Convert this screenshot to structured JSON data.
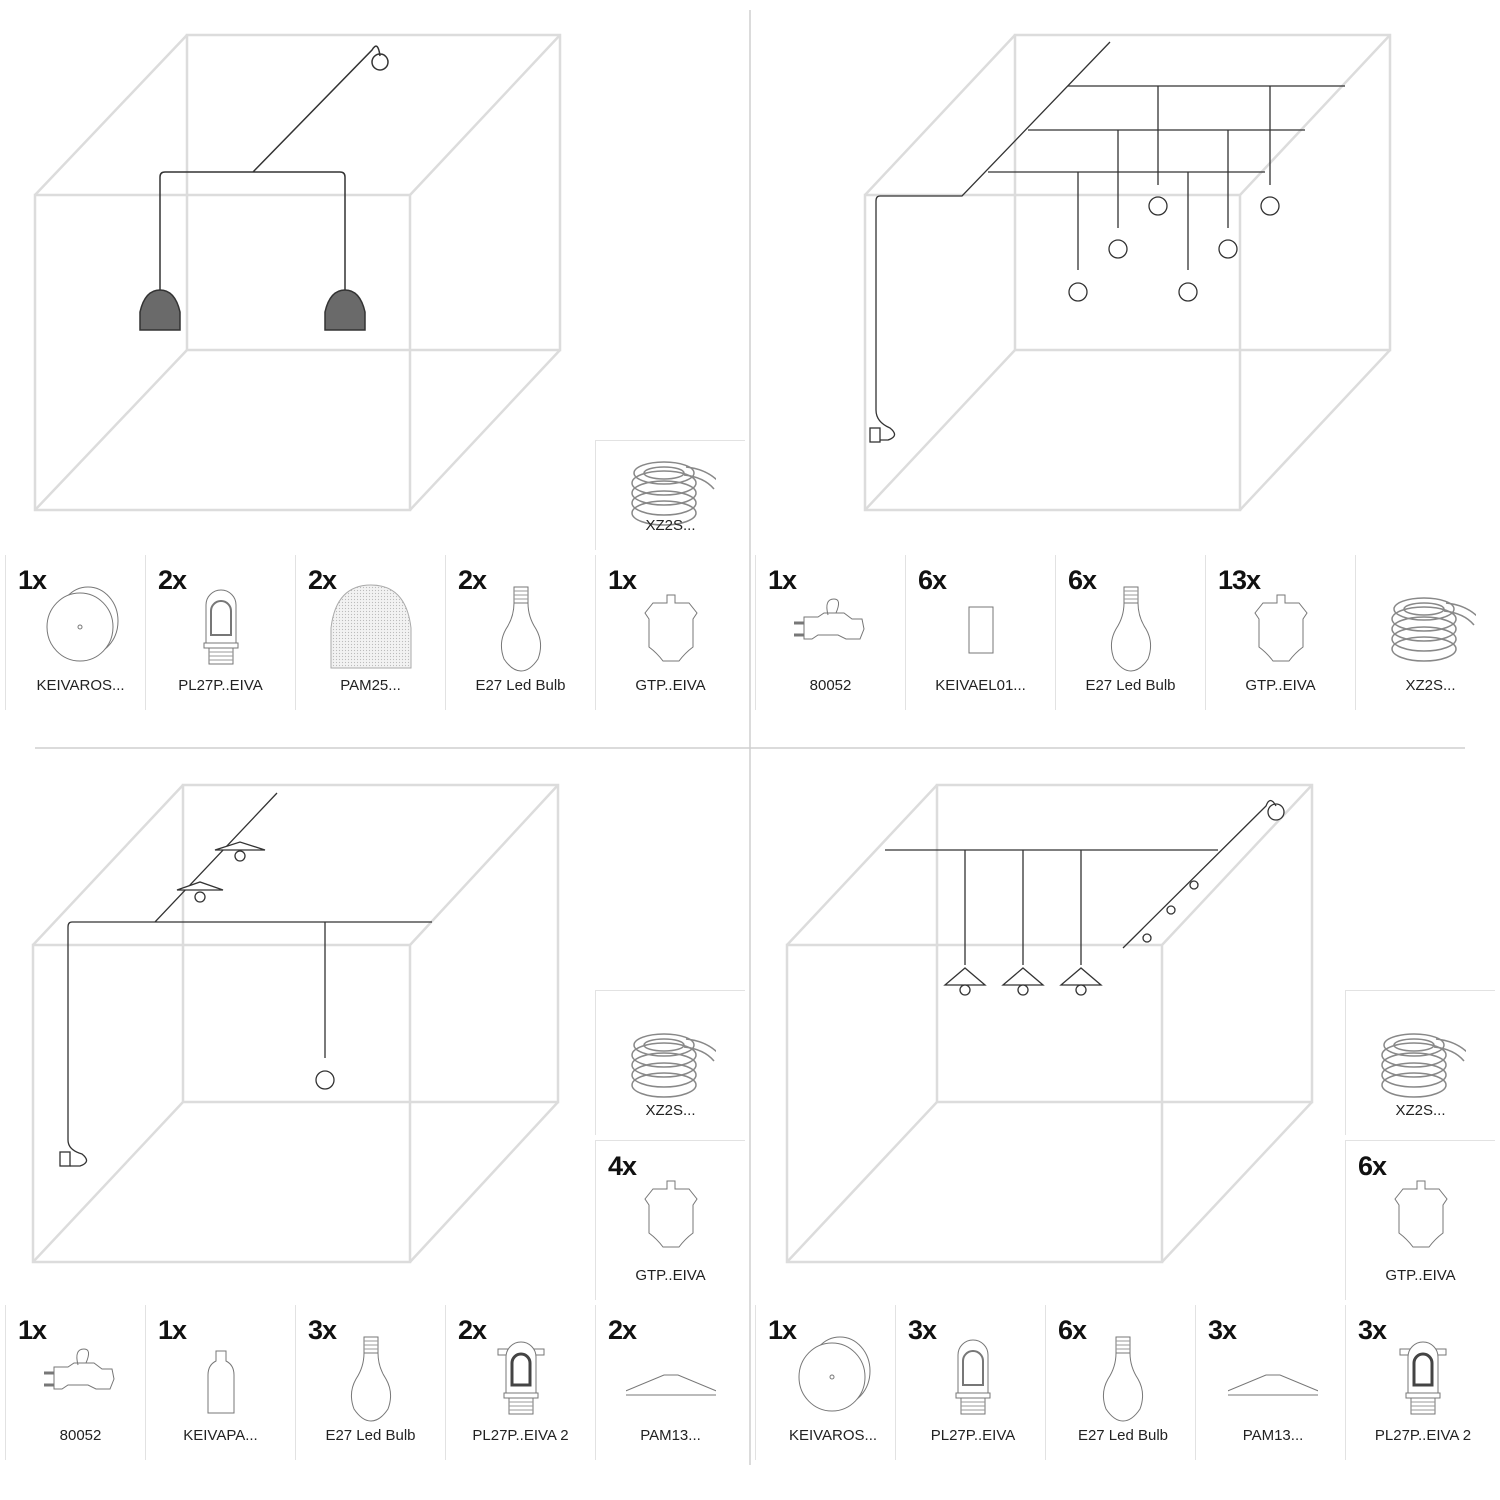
{
  "colors": {
    "cube": "#dcdcdc",
    "cable": "#333333",
    "shade_fill": "#6a6a6a",
    "divider": "#cfcfcf"
  },
  "quadrants": [
    {
      "parts": [
        {
          "qty": "1x",
          "label": "KEIVAROS...",
          "icon": "ceiling-rose-icon"
        },
        {
          "qty": "2x",
          "label": "PL27P..EIVA",
          "icon": "lamp-holder-icon"
        },
        {
          "qty": "2x",
          "label": "PAM25...",
          "icon": "dome-shade-icon"
        },
        {
          "qty": "2x",
          "label": "E27 Led Bulb",
          "icon": "bulb-icon"
        },
        {
          "qty": "1x",
          "label": "GTP..EIVA",
          "icon": "cable-guide-icon"
        }
      ],
      "stack": [
        {
          "qty": "",
          "label": "XZ2S...",
          "icon": "cable-coil-icon"
        }
      ]
    },
    {
      "parts": [
        {
          "qty": "1x",
          "label": "80052",
          "icon": "plug-icon"
        },
        {
          "qty": "6x",
          "label": "KEIVAEL01...",
          "icon": "cylinder-holder-icon"
        },
        {
          "qty": "6x",
          "label": "E27 Led Bulb",
          "icon": "bulb-icon"
        },
        {
          "qty": "13x",
          "label": "GTP..EIVA",
          "icon": "cable-guide-icon"
        },
        {
          "qty": "",
          "label": "XZ2S...",
          "icon": "cable-coil-icon"
        }
      ],
      "stack": []
    },
    {
      "parts": [
        {
          "qty": "1x",
          "label": "80052",
          "icon": "plug-icon"
        },
        {
          "qty": "1x",
          "label": "KEIVAPA...",
          "icon": "bottle-holder-icon"
        },
        {
          "qty": "3x",
          "label": "E27 Led Bulb",
          "icon": "bulb-icon"
        },
        {
          "qty": "2x",
          "label": "PL27P..EIVA 2",
          "icon": "lamp-holder-clip-icon"
        },
        {
          "qty": "2x",
          "label": "PAM13...",
          "icon": "flat-shade-icon"
        }
      ],
      "stack": [
        {
          "qty": "",
          "label": "XZ2S...",
          "icon": "cable-coil-icon"
        },
        {
          "qty": "4x",
          "label": "GTP..EIVA",
          "icon": "cable-guide-icon"
        }
      ]
    },
    {
      "parts": [
        {
          "qty": "1x",
          "label": "KEIVAROS...",
          "icon": "ceiling-rose-icon"
        },
        {
          "qty": "3x",
          "label": "PL27P..EIVA",
          "icon": "lamp-holder-icon"
        },
        {
          "qty": "6x",
          "label": "E27 Led Bulb",
          "icon": "bulb-icon"
        },
        {
          "qty": "3x",
          "label": "PAM13...",
          "icon": "flat-shade-icon"
        },
        {
          "qty": "3x",
          "label": "PL27P..EIVA 2",
          "icon": "lamp-holder-clip-icon"
        }
      ],
      "stack": [
        {
          "qty": "",
          "label": "XZ2S...",
          "icon": "cable-coil-icon"
        },
        {
          "qty": "6x",
          "label": "GTP..EIVA",
          "icon": "cable-guide-icon"
        }
      ]
    }
  ]
}
